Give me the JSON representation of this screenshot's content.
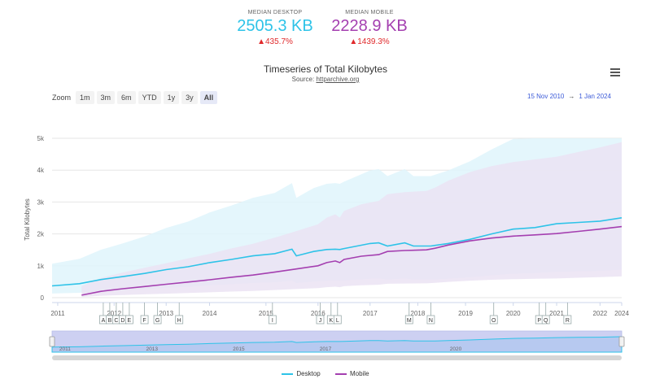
{
  "stats": {
    "desktop": {
      "label": "MEDIAN DESKTOP",
      "value": "2505.3 KB",
      "change": "▲435.7%"
    },
    "mobile": {
      "label": "MEDIAN MOBILE",
      "value": "2228.9 KB",
      "change": "▲1439.3%"
    }
  },
  "header": {
    "title": "Timeseries of Total Kilobytes",
    "subtitle_prefix": "Source: ",
    "subtitle_link": "httparchive.org"
  },
  "zoom": {
    "label": "Zoom",
    "buttons": [
      "1m",
      "3m",
      "6m",
      "YTD",
      "1y",
      "3y",
      "All"
    ],
    "active": "All"
  },
  "range": {
    "from": "15 Nov 2010",
    "arrow": "→",
    "to": "1 Jan 2024"
  },
  "colors": {
    "desktop": "#2ec3e8",
    "mobile": "#a43fb0",
    "desktop_band": "#dff5fc",
    "mobile_band": "#ebe3f3",
    "navigator_fill": "#cdd0f2"
  },
  "chart_data": {
    "type": "line",
    "title": "Timeseries of Total Kilobytes",
    "ylabel": "Total Kilobytes",
    "ylim": [
      0,
      5000
    ],
    "xlim": [
      2010.87,
      2024.0
    ],
    "y_ticks": [
      "0",
      "1k",
      "2k",
      "3k",
      "4k",
      "5k"
    ],
    "y_tick_values": [
      0,
      1000,
      2000,
      3000,
      4000,
      5000
    ],
    "x_ticks": [
      "2011",
      "2012",
      "2013",
      "2014",
      "2015",
      "2016",
      "2017",
      "2018",
      "2019",
      "2020",
      "2021",
      "2022",
      "2024"
    ],
    "x_tick_values": [
      2011,
      2012.3,
      2013.5,
      2014.5,
      2015.8,
      2017.0,
      2018.2,
      2019.3,
      2020.4,
      2021.5,
      2022.5,
      2023.5,
      2024.0
    ],
    "series": [
      {
        "name": "Desktop",
        "x": [
          2010.87,
          2011.5,
          2012.0,
          2012.5,
          2013.0,
          2013.5,
          2014.0,
          2014.5,
          2015.0,
          2015.5,
          2016.0,
          2016.4,
          2016.5,
          2016.9,
          2017.2,
          2017.4,
          2017.5,
          2017.6,
          2018.2,
          2018.4,
          2018.6,
          2019.0,
          2019.2,
          2019.6,
          2019.7,
          2020.0,
          2020.5,
          2021.0,
          2021.5,
          2022.0,
          2022.5,
          2023.0,
          2023.5,
          2024.0
        ],
        "values": [
          370,
          440,
          570,
          660,
          760,
          880,
          970,
          1100,
          1200,
          1310,
          1380,
          1520,
          1310,
          1450,
          1510,
          1520,
          1510,
          1540,
          1700,
          1720,
          1620,
          1720,
          1620,
          1620,
          1640,
          1700,
          1830,
          2000,
          2150,
          2200,
          2320,
          2360,
          2400,
          2505
        ]
      },
      {
        "name": "Mobile",
        "x": [
          2011.55,
          2012.0,
          2012.5,
          2013.0,
          2013.5,
          2014.0,
          2014.5,
          2015.0,
          2015.5,
          2016.0,
          2016.5,
          2017.0,
          2017.2,
          2017.4,
          2017.5,
          2017.6,
          2018.0,
          2018.4,
          2018.6,
          2019.0,
          2019.5,
          2019.7,
          2020.0,
          2020.5,
          2021.0,
          2021.5,
          2022.0,
          2022.5,
          2023.0,
          2023.5,
          2024.0
        ],
        "values": [
          80,
          200,
          280,
          350,
          420,
          490,
          560,
          640,
          710,
          800,
          900,
          1000,
          1100,
          1150,
          1100,
          1200,
          1300,
          1350,
          1450,
          1480,
          1500,
          1550,
          1650,
          1780,
          1870,
          1930,
          1970,
          2010,
          2080,
          2150,
          2229
        ]
      }
    ],
    "annotations": [
      "A",
      "B",
      "C",
      "D",
      "E",
      "F",
      "G",
      "H",
      "I",
      "J",
      "K",
      "L",
      "M",
      "N",
      "O",
      "P",
      "Q",
      "R"
    ],
    "annotation_x": [
      2012.05,
      2012.2,
      2012.35,
      2012.5,
      2012.65,
      2013.0,
      2013.3,
      2013.8,
      2015.95,
      2017.05,
      2017.3,
      2017.45,
      2019.1,
      2019.6,
      2021.05,
      2022.1,
      2022.25,
      2022.75
    ],
    "legend": [
      "Desktop",
      "Mobile"
    ],
    "navigator_ticks": [
      "2011",
      "2013",
      "2015",
      "2017",
      "2020"
    ],
    "grid": true
  }
}
